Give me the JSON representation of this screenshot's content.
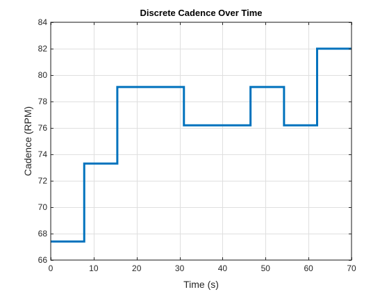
{
  "chart_data": {
    "type": "line",
    "title": "Discrete Cadence Over Time",
    "xlabel": "Time (s)",
    "ylabel": "Cadence (RPM)",
    "xlim": [
      0,
      70
    ],
    "ylim": [
      66,
      84
    ],
    "xticks": [
      0,
      10,
      20,
      30,
      40,
      50,
      60,
      70
    ],
    "yticks": [
      66,
      68,
      70,
      72,
      74,
      76,
      78,
      80,
      82,
      84
    ],
    "grid": true,
    "legend": "none",
    "line_color": "#0072bd",
    "step_style": "post",
    "series": [
      {
        "x": [
          0,
          7.8,
          15.5,
          31.0,
          46.5,
          54.3,
          62.0,
          70
        ],
        "values": [
          67.4,
          73.3,
          79.1,
          76.2,
          79.1,
          76.2,
          82.0,
          82.0
        ]
      }
    ]
  }
}
